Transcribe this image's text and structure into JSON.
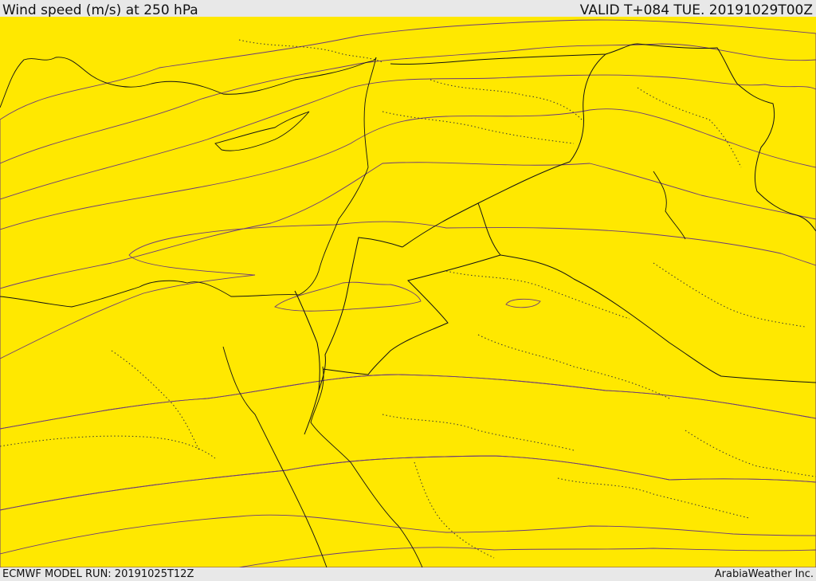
{
  "header": {
    "title": "Wind speed (m/s) at 250 hPa",
    "valid": "VALID T+084 TUE. 20191029T00Z"
  },
  "footer": {
    "model_run": "ECMWF MODEL RUN: 20191025T12Z",
    "credit": "ArabiaWeather Inc."
  },
  "colors": {
    "band_1": "#ffe800",
    "band_2": "#ffb400",
    "band_3": "#ff9200",
    "band_4": "#ff7600",
    "band_5": "#ff5a00",
    "band_6": "#ff3d00",
    "band_7": "#ff1b0a",
    "core": "#ff0a14",
    "contour": "#6b3a7a"
  }
}
